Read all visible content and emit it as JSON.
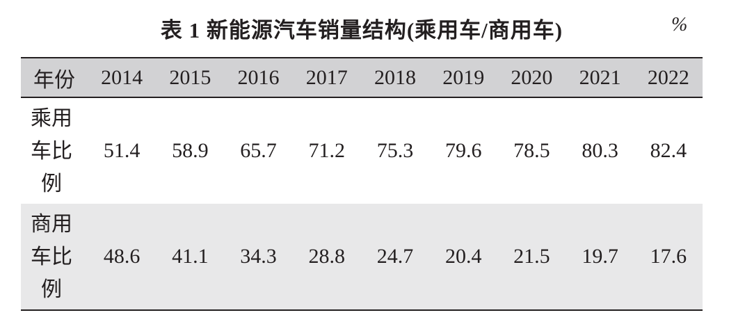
{
  "header": {
    "title": "表 1 新能源汽车销量结构(乘用车/商用车)",
    "unit": "%"
  },
  "table": {
    "columns": [
      "年份",
      "2014",
      "2015",
      "2016",
      "2017",
      "2018",
      "2019",
      "2020",
      "2021",
      "2022"
    ],
    "rows": [
      [
        "乘用车比例",
        51.4,
        58.9,
        65.7,
        71.2,
        75.3,
        79.6,
        78.5,
        80.3,
        82.4
      ],
      [
        "商用车比例",
        48.6,
        41.1,
        34.3,
        28.8,
        24.7,
        20.4,
        21.5,
        19.7,
        17.6
      ]
    ]
  }
}
